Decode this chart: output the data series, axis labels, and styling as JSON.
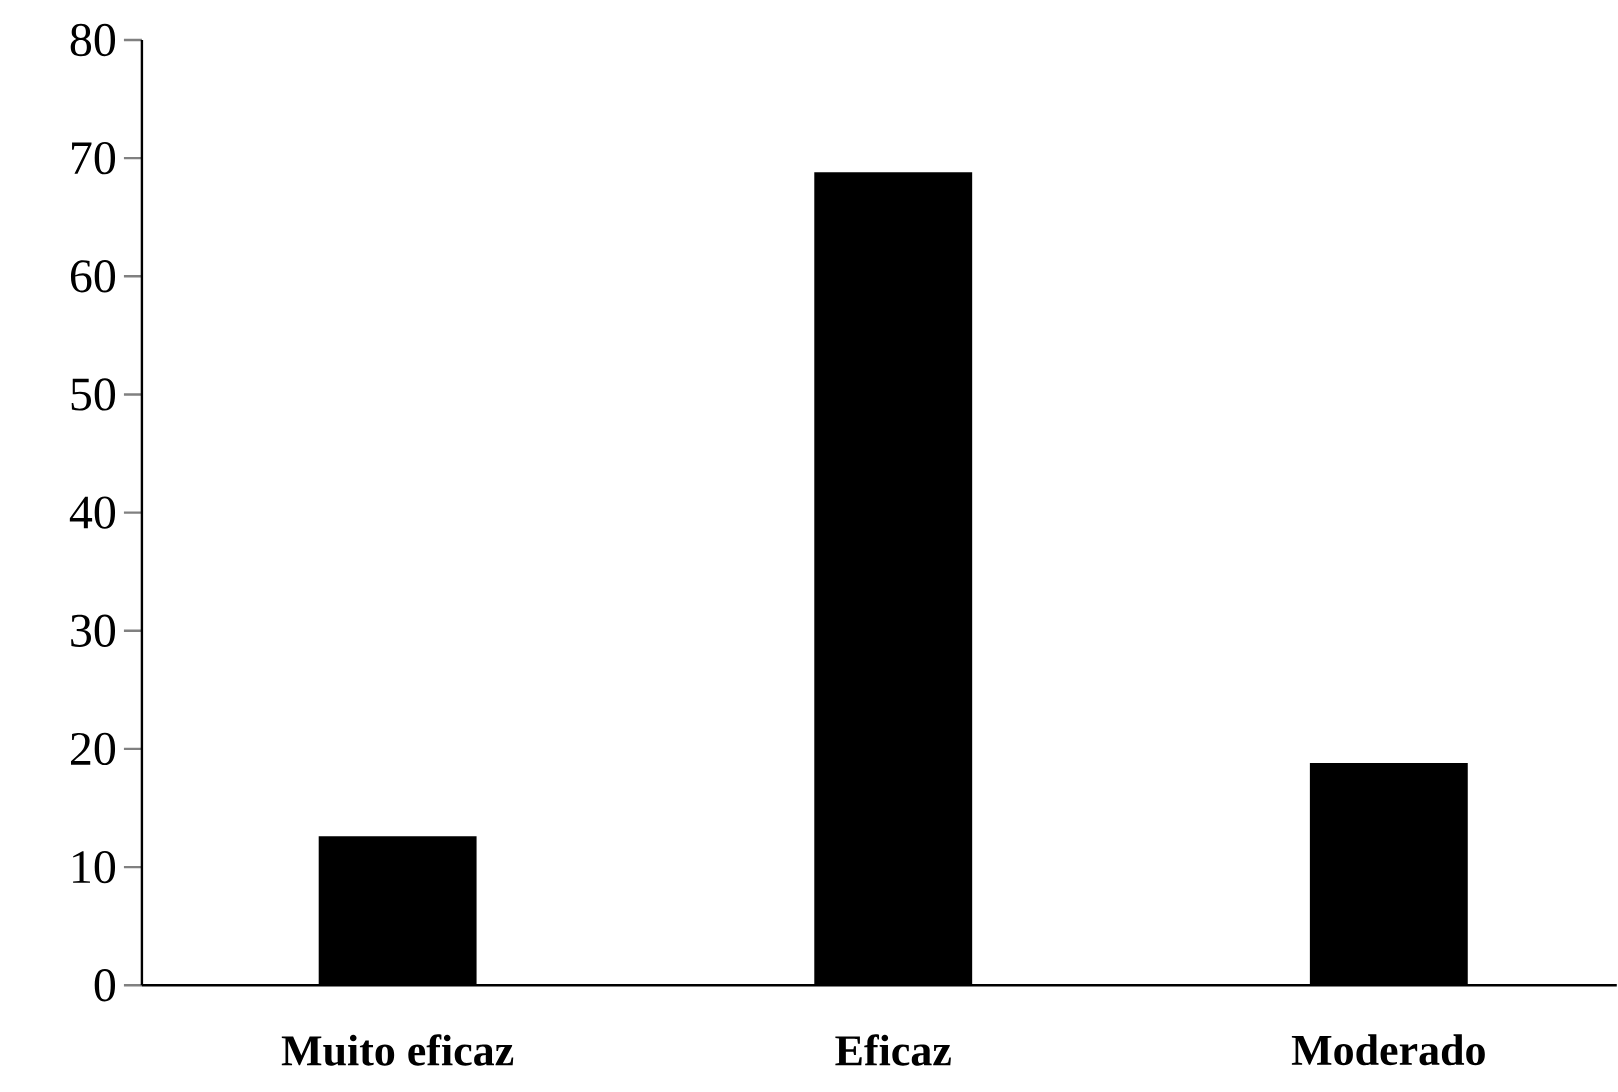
{
  "chart_data": {
    "type": "bar",
    "categories": [
      "Muito eficaz",
      "Eficaz",
      "Moderado"
    ],
    "values": [
      12.6,
      68.8,
      18.8
    ],
    "color": "#000000",
    "ylim": [
      0,
      80
    ],
    "yticks": [
      0,
      10,
      20,
      30,
      40,
      50,
      60,
      70,
      80
    ]
  }
}
